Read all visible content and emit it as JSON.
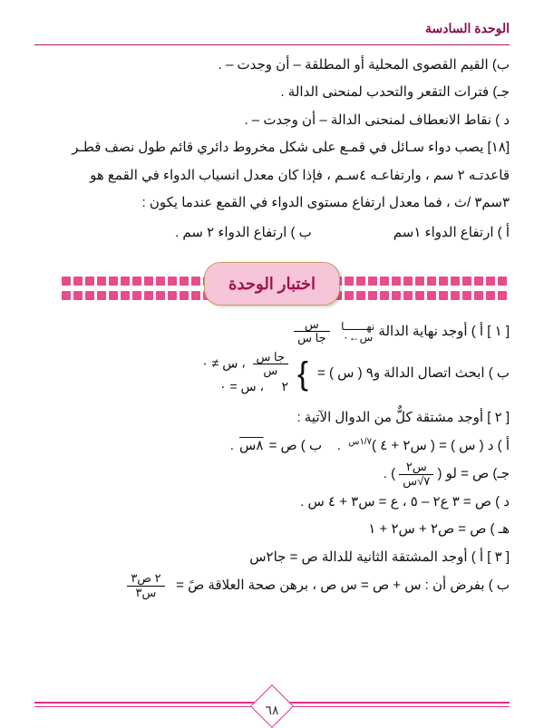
{
  "header": {
    "unit_label": "الوحدة السادسة"
  },
  "section_a": {
    "b": "ب)  القيم القصوى المحلية أو المطلقة – أن وجدت – .",
    "c": "جـ)  فترات التقعر والتحدب لمنحنى الدالة .",
    "d": "د )  نقاط الانعطاف لمنحنى الدالة – أن وجدت – .",
    "q18": "[١٨]  يصب دواء  سـائل في قمـع على شكل مخروط دائري قائم طول نصف قطـر",
    "q18_line2": "قاعدتـه  ٢ سم  ، وارتفاعـه  ٤سـم ، فإذا كان معدل انسياب الدواء في القمع هو",
    "q18_line3": "٣سم٣ /ث ، فما معدل ارتفاع مستوى الدواء في القمع عندما يكون :",
    "choice_a": "أ ) ارتفاع الدواء  ١سم",
    "choice_b": "ب )  ارتفاع الدواء  ٢ سم  ."
  },
  "ribbon": {
    "title": "اختبار الوحدة"
  },
  "section_b": {
    "q1a_prefix": "[ ١ ]   أ )  أوجد نهاية الدالة   ",
    "q1a_lim_top": "نهـــــــا",
    "q1a_lim_bot": "س←٠",
    "q1a_frac_num": "س",
    "q1a_frac_den": "جا س",
    "q1b": "ب ) ابحث  اتصال  الدالة  و٩ ( س ) =",
    "case1_num": "جا س",
    "case1_den": "س",
    "case1_cond": "،  س ≠ ٠",
    "case2_val": "٢",
    "case2_cond": "،  س = ٠",
    "q2": "[ ٢ ]   أوجد مشتقة كلٌّ من الدوال الآتية :",
    "q2a": "أ )   د ( س ) = ( س٢ + ٤ )",
    "q2a_exp": "١/٧س",
    "q2b": "ب )   ص = ",
    "q2b_root": "٨س",
    "q2c": "جـ)  ص = لو (",
    "q2c_frac_num": "س٢",
    "q2c_frac_den": "٧√س",
    "q2d": "د )   ص = ٣ ع٢ – ٥   ،  ع = س٣ + ٤ س  .",
    "q2e": "هـ )   ص = ص٢ + س٢ + ١",
    "q3a": "[ ٣ ]  أ )  أوجد المشتقة الثانية للدالة   ص  =  جا٢س",
    "q3b": "ب ) بفرض أن :  س + ص = س ص   ، برهن صحة العلاقة  صً  =",
    "q3b_frac_num": "٢ ص٣",
    "q3b_frac_den": "س٣"
  },
  "page_number": "٦٨",
  "colors": {
    "accent": "#e62e8a",
    "ribbon_bg": "#f6c6d8",
    "ribbon_text": "#a11250",
    "header_text": "#8a0f4a"
  }
}
